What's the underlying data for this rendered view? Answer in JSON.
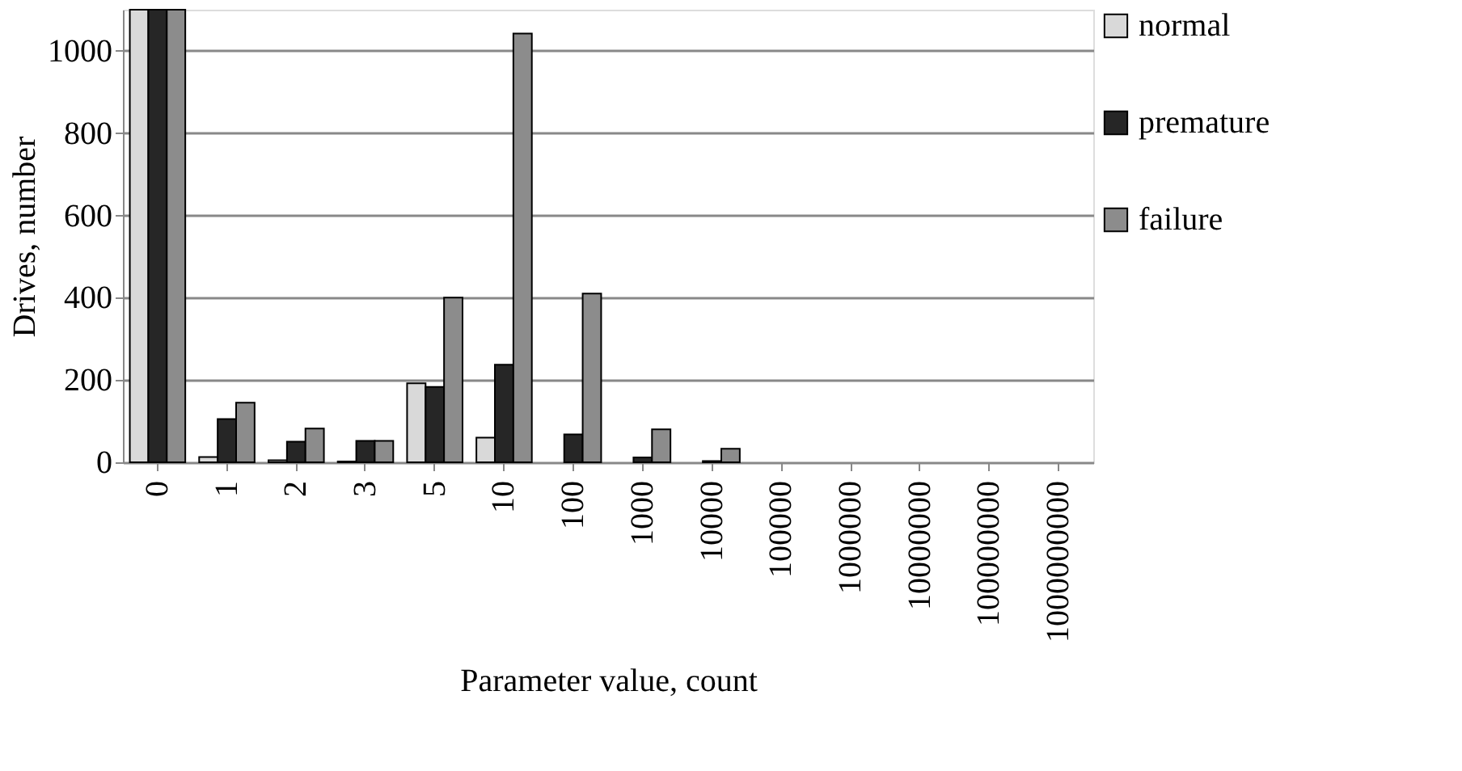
{
  "chart_data": {
    "type": "bar",
    "xlabel": "Parameter value, count",
    "ylabel": "Drives, number",
    "categories": [
      "0",
      "1",
      "2",
      "3",
      "5",
      "10",
      "100",
      "1000",
      "10000",
      "100000",
      "1000000",
      "10000000",
      "100000000",
      "1000000000"
    ],
    "series": [
      {
        "name": "normal",
        "color": "#d9d9d9",
        "values": [
          1100,
          13,
          5,
          2,
          192,
          60,
          0,
          0,
          0,
          0,
          0,
          0,
          0,
          0
        ]
      },
      {
        "name": "premature",
        "color": "#262626",
        "values": [
          1100,
          105,
          50,
          52,
          183,
          237,
          68,
          12,
          3,
          0,
          0,
          0,
          0,
          0
        ]
      },
      {
        "name": "failure",
        "color": "#8c8c8c",
        "values": [
          1100,
          145,
          82,
          52,
          400,
          1042,
          410,
          80,
          33,
          0,
          0,
          0,
          0,
          0
        ]
      }
    ],
    "ylim": [
      0,
      1100
    ],
    "yticks": [
      0,
      200,
      400,
      600,
      800,
      1000
    ],
    "grid": "y",
    "legend": "right"
  }
}
